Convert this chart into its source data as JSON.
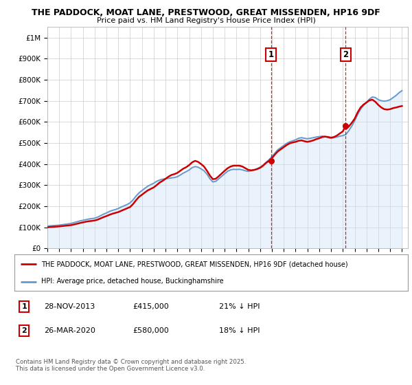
{
  "title_line1": "THE PADDOCK, MOAT LANE, PRESTWOOD, GREAT MISSENDEN, HP16 9DF",
  "title_line2": "Price paid vs. HM Land Registry's House Price Index (HPI)",
  "background_color": "#ffffff",
  "plot_bg_color": "#ffffff",
  "grid_color": "#cccccc",
  "hpi_line_color": "#6699cc",
  "hpi_fill_color": "#cce0f5",
  "price_line_color": "#cc0000",
  "sale1_date_x": 2013.91,
  "sale2_date_x": 2020.23,
  "sale1_price": 415000,
  "sale2_price": 580000,
  "sale1_date_str": "28-NOV-2013",
  "sale2_date_str": "26-MAR-2020",
  "sale1_pct": "21% ↓ HPI",
  "sale2_pct": "18% ↓ HPI",
  "legend_label1": "THE PADDOCK, MOAT LANE, PRESTWOOD, GREAT MISSENDEN, HP16 9DF (detached house)",
  "legend_label2": "HPI: Average price, detached house, Buckinghamshire",
  "footnote": "Contains HM Land Registry data © Crown copyright and database right 2025.\nThis data is licensed under the Open Government Licence v3.0.",
  "hpi_data": [
    [
      1995.0,
      105000
    ],
    [
      1995.25,
      107000
    ],
    [
      1995.5,
      108000
    ],
    [
      1995.75,
      109000
    ],
    [
      1996.0,
      110000
    ],
    [
      1996.25,
      112000
    ],
    [
      1996.5,
      114000
    ],
    [
      1996.75,
      116000
    ],
    [
      1997.0,
      118000
    ],
    [
      1997.25,
      122000
    ],
    [
      1997.5,
      126000
    ],
    [
      1997.75,
      130000
    ],
    [
      1998.0,
      133000
    ],
    [
      1998.25,
      136000
    ],
    [
      1998.5,
      139000
    ],
    [
      1998.75,
      141000
    ],
    [
      1999.0,
      143000
    ],
    [
      1999.25,
      148000
    ],
    [
      1999.5,
      155000
    ],
    [
      1999.75,
      162000
    ],
    [
      2000.0,
      168000
    ],
    [
      2000.25,
      175000
    ],
    [
      2000.5,
      180000
    ],
    [
      2000.75,
      184000
    ],
    [
      2001.0,
      189000
    ],
    [
      2001.25,
      196000
    ],
    [
      2001.5,
      202000
    ],
    [
      2001.75,
      208000
    ],
    [
      2002.0,
      216000
    ],
    [
      2002.25,
      230000
    ],
    [
      2002.5,
      248000
    ],
    [
      2002.75,
      263000
    ],
    [
      2003.0,
      274000
    ],
    [
      2003.25,
      285000
    ],
    [
      2003.5,
      295000
    ],
    [
      2003.75,
      302000
    ],
    [
      2004.0,
      309000
    ],
    [
      2004.25,
      318000
    ],
    [
      2004.5,
      324000
    ],
    [
      2004.75,
      328000
    ],
    [
      2005.0,
      330000
    ],
    [
      2005.25,
      332000
    ],
    [
      2005.5,
      334000
    ],
    [
      2005.75,
      336000
    ],
    [
      2006.0,
      340000
    ],
    [
      2006.25,
      348000
    ],
    [
      2006.5,
      357000
    ],
    [
      2006.75,
      364000
    ],
    [
      2007.0,
      372000
    ],
    [
      2007.25,
      383000
    ],
    [
      2007.5,
      388000
    ],
    [
      2007.75,
      385000
    ],
    [
      2008.0,
      377000
    ],
    [
      2008.25,
      368000
    ],
    [
      2008.5,
      352000
    ],
    [
      2008.75,
      330000
    ],
    [
      2009.0,
      315000
    ],
    [
      2009.25,
      318000
    ],
    [
      2009.5,
      330000
    ],
    [
      2009.75,
      342000
    ],
    [
      2010.0,
      354000
    ],
    [
      2010.25,
      366000
    ],
    [
      2010.5,
      372000
    ],
    [
      2010.75,
      375000
    ],
    [
      2011.0,
      374000
    ],
    [
      2011.25,
      375000
    ],
    [
      2011.5,
      372000
    ],
    [
      2011.75,
      368000
    ],
    [
      2012.0,
      365000
    ],
    [
      2012.25,
      368000
    ],
    [
      2012.5,
      372000
    ],
    [
      2012.75,
      378000
    ],
    [
      2013.0,
      385000
    ],
    [
      2013.25,
      395000
    ],
    [
      2013.5,
      408000
    ],
    [
      2013.75,
      420000
    ],
    [
      2014.0,
      435000
    ],
    [
      2014.25,
      452000
    ],
    [
      2014.5,
      468000
    ],
    [
      2014.75,
      478000
    ],
    [
      2015.0,
      488000
    ],
    [
      2015.25,
      498000
    ],
    [
      2015.5,
      505000
    ],
    [
      2015.75,
      510000
    ],
    [
      2016.0,
      515000
    ],
    [
      2016.25,
      522000
    ],
    [
      2016.5,
      525000
    ],
    [
      2016.75,
      522000
    ],
    [
      2017.0,
      520000
    ],
    [
      2017.25,
      522000
    ],
    [
      2017.5,
      525000
    ],
    [
      2017.75,
      528000
    ],
    [
      2018.0,
      530000
    ],
    [
      2018.25,
      532000
    ],
    [
      2018.5,
      530000
    ],
    [
      2018.75,
      525000
    ],
    [
      2019.0,
      522000
    ],
    [
      2019.25,
      525000
    ],
    [
      2019.5,
      528000
    ],
    [
      2019.75,
      532000
    ],
    [
      2020.0,
      535000
    ],
    [
      2020.25,
      540000
    ],
    [
      2020.5,
      558000
    ],
    [
      2020.75,
      580000
    ],
    [
      2021.0,
      605000
    ],
    [
      2021.25,
      635000
    ],
    [
      2021.5,
      660000
    ],
    [
      2021.75,
      678000
    ],
    [
      2022.0,
      692000
    ],
    [
      2022.25,
      708000
    ],
    [
      2022.5,
      718000
    ],
    [
      2022.75,
      715000
    ],
    [
      2023.0,
      705000
    ],
    [
      2023.25,
      700000
    ],
    [
      2023.5,
      698000
    ],
    [
      2023.75,
      700000
    ],
    [
      2024.0,
      705000
    ],
    [
      2024.25,
      715000
    ],
    [
      2024.5,
      725000
    ],
    [
      2024.75,
      738000
    ],
    [
      2025.0,
      748000
    ]
  ],
  "price_data": [
    [
      1995.0,
      100000
    ],
    [
      1995.25,
      101000
    ],
    [
      1995.5,
      102000
    ],
    [
      1995.75,
      103000
    ],
    [
      1996.0,
      104000
    ],
    [
      1996.25,
      105500
    ],
    [
      1996.5,
      107000
    ],
    [
      1996.75,
      108500
    ],
    [
      1997.0,
      110000
    ],
    [
      1997.25,
      113000
    ],
    [
      1997.5,
      116500
    ],
    [
      1997.75,
      120000
    ],
    [
      1998.0,
      123000
    ],
    [
      1998.25,
      126000
    ],
    [
      1998.5,
      128500
    ],
    [
      1998.75,
      130000
    ],
    [
      1999.0,
      132000
    ],
    [
      1999.25,
      136000
    ],
    [
      1999.5,
      142000
    ],
    [
      1999.75,
      148000
    ],
    [
      2000.0,
      153000
    ],
    [
      2000.25,
      159000
    ],
    [
      2000.5,
      164000
    ],
    [
      2000.75,
      168000
    ],
    [
      2001.0,
      172000
    ],
    [
      2001.25,
      178000
    ],
    [
      2001.5,
      184000
    ],
    [
      2001.75,
      190000
    ],
    [
      2002.0,
      196000
    ],
    [
      2002.25,
      210000
    ],
    [
      2002.5,
      228000
    ],
    [
      2002.75,
      244000
    ],
    [
      2003.0,
      254000
    ],
    [
      2003.25,
      265000
    ],
    [
      2003.5,
      275000
    ],
    [
      2003.75,
      282000
    ],
    [
      2004.0,
      289000
    ],
    [
      2004.25,
      300000
    ],
    [
      2004.5,
      312000
    ],
    [
      2004.75,
      320000
    ],
    [
      2005.0,
      330000
    ],
    [
      2005.25,
      340000
    ],
    [
      2005.5,
      348000
    ],
    [
      2005.75,
      352000
    ],
    [
      2006.0,
      358000
    ],
    [
      2006.25,
      368000
    ],
    [
      2006.5,
      378000
    ],
    [
      2006.75,
      385000
    ],
    [
      2007.0,
      395000
    ],
    [
      2007.25,
      408000
    ],
    [
      2007.5,
      415000
    ],
    [
      2007.75,
      410000
    ],
    [
      2008.0,
      400000
    ],
    [
      2008.25,
      388000
    ],
    [
      2008.5,
      368000
    ],
    [
      2008.75,
      345000
    ],
    [
      2009.0,
      328000
    ],
    [
      2009.25,
      330000
    ],
    [
      2009.5,
      342000
    ],
    [
      2009.75,
      355000
    ],
    [
      2010.0,
      368000
    ],
    [
      2010.25,
      380000
    ],
    [
      2010.5,
      388000
    ],
    [
      2010.75,
      392000
    ],
    [
      2011.0,
      392000
    ],
    [
      2011.25,
      392000
    ],
    [
      2011.5,
      388000
    ],
    [
      2011.75,
      380000
    ],
    [
      2012.0,
      372000
    ],
    [
      2012.25,
      370000
    ],
    [
      2012.5,
      372000
    ],
    [
      2012.75,
      376000
    ],
    [
      2013.0,
      382000
    ],
    [
      2013.25,
      392000
    ],
    [
      2013.5,
      405000
    ],
    [
      2013.75,
      415000
    ],
    [
      2013.91,
      415000
    ],
    [
      2014.0,
      428000
    ],
    [
      2014.25,
      445000
    ],
    [
      2014.5,
      460000
    ],
    [
      2014.75,
      470000
    ],
    [
      2015.0,
      480000
    ],
    [
      2015.25,
      490000
    ],
    [
      2015.5,
      498000
    ],
    [
      2015.75,
      502000
    ],
    [
      2016.0,
      505000
    ],
    [
      2016.25,
      510000
    ],
    [
      2016.5,
      512000
    ],
    [
      2016.75,
      508000
    ],
    [
      2017.0,
      505000
    ],
    [
      2017.25,
      508000
    ],
    [
      2017.5,
      512000
    ],
    [
      2017.75,
      518000
    ],
    [
      2018.0,
      522000
    ],
    [
      2018.25,
      528000
    ],
    [
      2018.5,
      530000
    ],
    [
      2018.75,
      528000
    ],
    [
      2019.0,
      525000
    ],
    [
      2019.25,
      528000
    ],
    [
      2019.5,
      535000
    ],
    [
      2019.75,
      545000
    ],
    [
      2020.0,
      555000
    ],
    [
      2020.23,
      580000
    ],
    [
      2020.25,
      565000
    ],
    [
      2020.5,
      578000
    ],
    [
      2020.75,
      595000
    ],
    [
      2021.0,
      615000
    ],
    [
      2021.25,
      645000
    ],
    [
      2021.5,
      668000
    ],
    [
      2021.75,
      682000
    ],
    [
      2022.0,
      692000
    ],
    [
      2022.25,
      702000
    ],
    [
      2022.5,
      705000
    ],
    [
      2022.75,
      695000
    ],
    [
      2023.0,
      680000
    ],
    [
      2023.25,
      668000
    ],
    [
      2023.5,
      660000
    ],
    [
      2023.75,
      658000
    ],
    [
      2024.0,
      660000
    ],
    [
      2024.25,
      665000
    ],
    [
      2024.5,
      668000
    ],
    [
      2024.75,
      672000
    ],
    [
      2025.0,
      675000
    ]
  ],
  "ylim": [
    0,
    1050000
  ],
  "xlim": [
    1995,
    2025.5
  ],
  "yticks": [
    0,
    100000,
    200000,
    300000,
    400000,
    500000,
    600000,
    700000,
    800000,
    900000,
    1000000
  ],
  "ytick_labels": [
    "£0",
    "£100K",
    "£200K",
    "£300K",
    "£400K",
    "£500K",
    "£600K",
    "£700K",
    "£800K",
    "£900K",
    "£1M"
  ],
  "xticks": [
    1995,
    1996,
    1997,
    1998,
    1999,
    2000,
    2001,
    2002,
    2003,
    2004,
    2005,
    2006,
    2007,
    2008,
    2009,
    2010,
    2011,
    2012,
    2013,
    2014,
    2015,
    2016,
    2017,
    2018,
    2019,
    2020,
    2021,
    2022,
    2023,
    2024,
    2025
  ]
}
